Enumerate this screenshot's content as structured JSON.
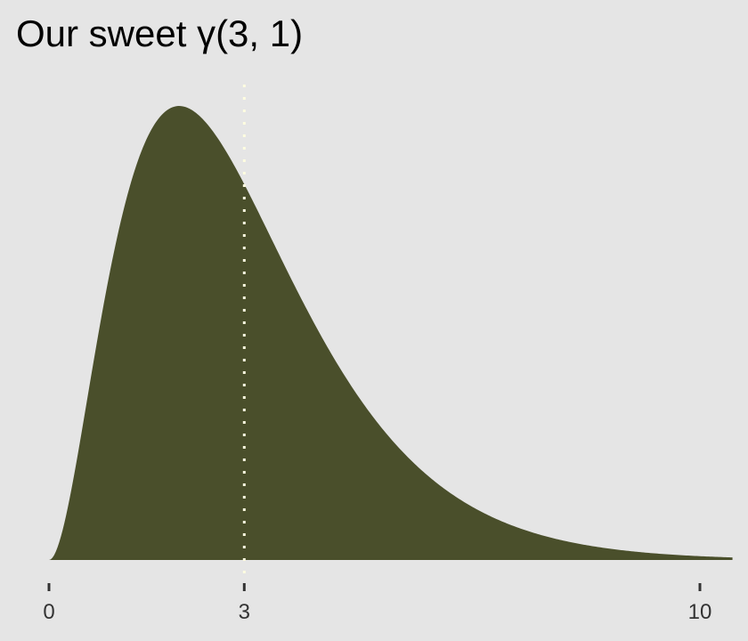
{
  "chart_data": {
    "type": "area",
    "title": "Our sweet γ(3, 1)",
    "distribution": {
      "family": "gamma",
      "shape": 3,
      "rate": 1
    },
    "xlim": [
      0,
      10.5
    ],
    "ylim": [
      0,
      0.2707
    ],
    "x_ticks": [
      0,
      3,
      10
    ],
    "x_tick_labels": [
      "0",
      "3",
      "10"
    ],
    "y_axis_shown": false,
    "grid": false,
    "reference_line": {
      "x": 3,
      "style": "dotted",
      "color": "#fffde0"
    },
    "fill_color": "#4a4f2b",
    "background_color": "#e5e5e5"
  }
}
